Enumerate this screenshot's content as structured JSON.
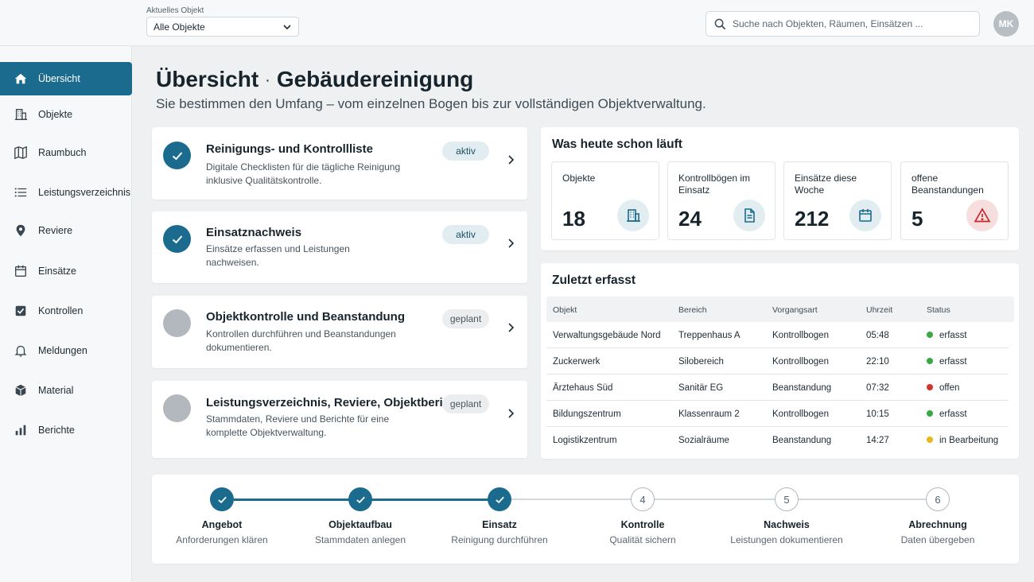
{
  "topbar": {
    "object_label": "Aktuelles Objekt",
    "object_value": "Alle Objekte",
    "search_placeholder": "Suche nach Objekten, Räumen, Einsätzen ...",
    "avatar_initials": "MK"
  },
  "sidebar": {
    "items": [
      {
        "label": "Übersicht",
        "icon": "home-icon",
        "active": true
      },
      {
        "label": "Objekte",
        "icon": "building-icon"
      },
      {
        "label": "Raumbuch",
        "icon": "map-icon"
      },
      {
        "label": "Leistungsverzeichnis",
        "icon": "list-icon"
      },
      {
        "label": "Reviere",
        "icon": "location-pin-icon"
      },
      {
        "label": "Einsätze",
        "icon": "calendar-icon"
      },
      {
        "label": "Kontrollen",
        "icon": "checkbox-icon"
      },
      {
        "label": "Meldungen",
        "icon": "bell-icon"
      },
      {
        "label": "Material",
        "icon": "box-icon"
      },
      {
        "label": "Berichte",
        "icon": "bar-chart-icon"
      }
    ]
  },
  "header": {
    "title_part1": "Übersicht",
    "title_separator": "·",
    "title_part2": "Gebäudereinigung",
    "subtitle": "Sie bestimmen den Umfang – vom einzelnen Bogen bis zur vollständigen Objektverwaltung."
  },
  "modules": [
    {
      "title": "Reinigungs- und Kontrollliste",
      "desc": "Digitale Checklisten für die tägliche Reinigung inklusive Qualitätskontrolle.",
      "status": "aktiv",
      "done": true
    },
    {
      "title": "Einsatznachweis",
      "desc": "Einsätze erfassen und Leistungen nachweisen.",
      "status": "aktiv",
      "done": true
    },
    {
      "title": "Objektkontrolle und Beanstandung",
      "desc": "Kontrollen durchführen und Beanstandungen dokumentieren.",
      "status": "geplant",
      "done": false
    },
    {
      "title": "Leistungsverzeichnis, Reviere, Objektbericht",
      "desc": "Stammdaten, Reviere und Berichte für eine komplette Objektverwaltung.",
      "status": "geplant",
      "done": false
    }
  ],
  "today": {
    "title": "Was heute schon läuft",
    "kpis": [
      {
        "label": "Objekte",
        "value": "18",
        "icon": "building-icon"
      },
      {
        "label": "Kontrollbögen im Einsatz",
        "value": "24",
        "icon": "document-icon"
      },
      {
        "label": "Einsätze diese Woche",
        "value": "212",
        "icon": "calendar-icon"
      },
      {
        "label": "offene Beanstandungen",
        "value": "5",
        "icon": "warning-icon"
      }
    ]
  },
  "recent": {
    "title": "Zuletzt erfasst",
    "columns": [
      "Objekt",
      "Bereich",
      "Vorgangsart",
      "Uhrzeit",
      "Status"
    ],
    "rows": [
      {
        "objekt": "Verwaltungsgebäude Nord",
        "bereich": "Treppenhaus A",
        "art": "Kontrollbogen",
        "zeit": "05:48",
        "status": "erfasst",
        "color": "#3aa845"
      },
      {
        "objekt": "Zuckerwerk",
        "bereich": "Silobereich",
        "art": "Kontrollbogen",
        "zeit": "22:10",
        "status": "erfasst",
        "color": "#3aa845"
      },
      {
        "objekt": "Ärztehaus Süd",
        "bereich": "Sanitär EG",
        "art": "Beanstandung",
        "zeit": "07:32",
        "status": "offen",
        "color": "#d0342c"
      },
      {
        "objekt": "Bildungszentrum",
        "bereich": "Klassenraum 2",
        "art": "Kontrollbogen",
        "zeit": "10:15",
        "status": "erfasst",
        "color": "#3aa845"
      },
      {
        "objekt": "Logistikzentrum",
        "bereich": "Sozialräume",
        "art": "Beanstandung",
        "zeit": "14:27",
        "status": "in Bearbeitung",
        "color": "#e8b817"
      }
    ]
  },
  "steps": [
    {
      "num": "1",
      "title": "Angebot",
      "sub": "Anforderungen klären",
      "done": true
    },
    {
      "num": "2",
      "title": "Objektaufbau",
      "sub": "Stammdaten anlegen",
      "done": true
    },
    {
      "num": "3",
      "title": "Einsatz",
      "sub": "Reinigung durchführen",
      "done": true
    },
    {
      "num": "4",
      "title": "Kontrolle",
      "sub": "Qualität sichern",
      "done": false
    },
    {
      "num": "5",
      "title": "Nachweis",
      "sub": "Leistungen dokumentieren",
      "done": false
    },
    {
      "num": "6",
      "title": "Abrechnung",
      "sub": "Daten übergeben",
      "done": false
    }
  ],
  "colors": {
    "accent": "#1b6b8e",
    "success": "#3aa845",
    "danger": "#d0342c",
    "warning": "#e8b817"
  }
}
